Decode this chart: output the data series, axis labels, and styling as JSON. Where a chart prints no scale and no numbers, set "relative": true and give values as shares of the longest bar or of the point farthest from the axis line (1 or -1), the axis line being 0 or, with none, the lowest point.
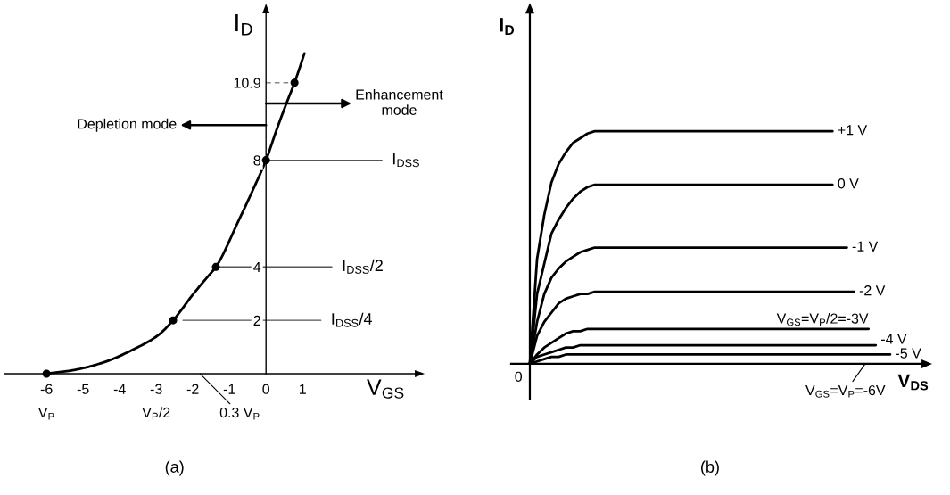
{
  "chart_data": [
    {
      "type": "line",
      "title": "(a)",
      "xlabel": "V$_{GS}$",
      "ylabel": "I$_{D}$",
      "xlim": [
        -7.15,
        4.07
      ],
      "ylim": [
        0,
        13.5
      ],
      "xticks": [
        -6,
        -5,
        -4,
        -3,
        -2,
        -1,
        0,
        1
      ],
      "yticks": [
        2,
        4,
        8,
        10.9
      ],
      "series": [
        {
          "type": "line",
          "color": "#000000",
          "x": [
            -6,
            -5.24,
            -4.41,
            -3.61,
            -2.95,
            -2.54,
            -1.98,
            -1.59,
            -1.37,
            -0.76,
            -0.37,
            0,
            0.29,
            0.59,
            0.78,
            1.05
          ],
          "values": [
            0,
            0.14,
            0.44,
            0.92,
            1.44,
            2,
            3.0,
            3.64,
            4,
            5.7,
            6.85,
            8,
            9.14,
            10.24,
            10.9,
            12.0
          ]
        },
        {
          "type": "scatter",
          "color": "#000000",
          "x": [
            -6,
            -2.54,
            -1.37,
            0,
            0.78
          ],
          "values": [
            0,
            2,
            4,
            8,
            10.9
          ]
        },
        {
          "type": "line",
          "name": "I$_{DSS}$",
          "color": "#555555",
          "x": [
            0,
            3.17
          ],
          "values": [
            8,
            8
          ]
        },
        {
          "type": "line",
          "name": "I$_{DSS}$/2",
          "color": "#555555",
          "x": [
            -1.37,
            1.8
          ],
          "values": [
            4,
            4
          ]
        },
        {
          "type": "line",
          "name": "I$_{DSS}$/4",
          "color": "#555555",
          "x": [
            -2.27,
            1.5
          ],
          "values": [
            2,
            2
          ]
        },
        {
          "type": "line",
          "color": "#888888",
          "line_style": "dashed",
          "x": [
            0,
            0.7
          ],
          "values": [
            10.9,
            10.9
          ]
        }
      ],
      "annotations": [
        "Depletion mode",
        "Enhancement\nmode",
        {
          "text": "V$_{P}$",
          "x": -6,
          "y": 0
        },
        "V$_{P}$/2",
        "0.3 V$_{P}$"
      ]
    },
    {
      "type": "line",
      "title": "(b)",
      "xlabel": "V$_{DS}$",
      "ylabel": "I$_{D}$",
      "relative": true,
      "categories": [
        null,
        null,
        null,
        null,
        null,
        null,
        null,
        null,
        null,
        null,
        null,
        null,
        null,
        null,
        null,
        null,
        null,
        null,
        null,
        null,
        null,
        null,
        null,
        null,
        null,
        null,
        null,
        null,
        null,
        null,
        null,
        null,
        null,
        null,
        null,
        null,
        null,
        null,
        null,
        null,
        null,
        null,
        null,
        null,
        null,
        null,
        null,
        null,
        null,
        null,
        null
      ],
      "series": [
        {
          "name": "+1 V",
          "color": "#000000",
          "values": [
            0,
            0.45,
            0.64,
            0.78,
            0.86,
            0.91,
            0.95,
            0.97,
            0.99,
            1,
            1,
            1,
            1,
            1,
            1,
            1,
            1,
            1,
            1,
            1,
            1,
            1,
            1,
            1,
            1,
            1,
            1,
            1,
            1,
            1,
            1,
            1,
            1,
            1,
            1,
            1,
            1,
            1,
            1,
            1,
            1,
            1,
            1,
            null,
            null,
            null,
            null,
            null,
            null,
            null,
            null
          ]
        },
        {
          "name": "0 V",
          "color": "#000000",
          "values": [
            0,
            0.3,
            0.43,
            0.56,
            0.62,
            0.67,
            0.71,
            0.74,
            0.76,
            0.77,
            0.77,
            0.77,
            0.77,
            0.77,
            0.77,
            0.77,
            0.77,
            0.77,
            0.77,
            0.77,
            0.77,
            0.77,
            0.77,
            0.77,
            0.77,
            0.77,
            0.77,
            0.77,
            0.77,
            0.77,
            0.77,
            0.77,
            0.77,
            0.77,
            0.77,
            0.77,
            0.77,
            0.77,
            0.77,
            0.77,
            0.77,
            0.77,
            0.77,
            null,
            null,
            null,
            null,
            null,
            null,
            null,
            null
          ]
        },
        {
          "name": "-1 V",
          "color": "#000000",
          "values": [
            0,
            0.18,
            0.3,
            0.37,
            0.41,
            0.44,
            0.46,
            0.48,
            0.49,
            0.5,
            0.5,
            0.5,
            0.5,
            0.5,
            0.5,
            0.5,
            0.5,
            0.5,
            0.5,
            0.5,
            0.5,
            0.5,
            0.5,
            0.5,
            0.5,
            0.5,
            0.5,
            0.5,
            0.5,
            0.5,
            0.5,
            0.5,
            0.5,
            0.5,
            0.5,
            0.5,
            0.5,
            0.5,
            0.5,
            0.5,
            0.5,
            0.5,
            0.5,
            0.5,
            0.5,
            null,
            null,
            null,
            null,
            null,
            null
          ]
        },
        {
          "name": "-2 V",
          "color": "#000000",
          "values": [
            0,
            0.12,
            0.18,
            0.22,
            0.26,
            0.28,
            0.29,
            0.3,
            0.3,
            0.31,
            0.31,
            0.31,
            0.31,
            0.31,
            0.31,
            0.31,
            0.31,
            0.31,
            0.31,
            0.31,
            0.31,
            0.31,
            0.31,
            0.31,
            0.31,
            0.31,
            0.31,
            0.31,
            0.31,
            0.31,
            0.31,
            0.31,
            0.31,
            0.31,
            0.31,
            0.31,
            0.31,
            0.31,
            0.31,
            0.31,
            0.31,
            0.31,
            0.31,
            0.31,
            0.31,
            0.31,
            null,
            null,
            null,
            null,
            null
          ]
        },
        {
          "name": "V$_{GS}$=V$_{P}$/2=-3V",
          "color": "#000000",
          "values": [
            0,
            0.04,
            0.07,
            0.09,
            0.11,
            0.13,
            0.14,
            0.14,
            0.15,
            0.15,
            0.15,
            0.15,
            0.15,
            0.15,
            0.15,
            0.15,
            0.15,
            0.15,
            0.15,
            0.15,
            0.15,
            0.15,
            0.15,
            0.15,
            0.15,
            0.15,
            0.15,
            0.15,
            0.15,
            0.15,
            0.15,
            0.15,
            0.15,
            0.15,
            0.15,
            0.15,
            0.15,
            0.15,
            0.15,
            0.15,
            0.15,
            0.15,
            0.15,
            0.15,
            0.15,
            0.15,
            0.15,
            0.15,
            null,
            null,
            null
          ]
        },
        {
          "name": "-4 V",
          "color": "#000000",
          "values": [
            0,
            0.03,
            0.04,
            0.05,
            0.06,
            0.07,
            0.07,
            0.08,
            0.08,
            0.08,
            0.08,
            0.08,
            0.08,
            0.08,
            0.08,
            0.08,
            0.08,
            0.08,
            0.08,
            0.08,
            0.08,
            0.08,
            0.08,
            0.08,
            0.08,
            0.08,
            0.08,
            0.08,
            0.08,
            0.08,
            0.08,
            0.08,
            0.08,
            0.08,
            0.08,
            0.08,
            0.08,
            0.08,
            0.08,
            0.08,
            0.08,
            0.08,
            0.08,
            0.08,
            0.08,
            0.08,
            0.08,
            0.08,
            0.08,
            null,
            null
          ]
        },
        {
          "name": "-5 V",
          "color": "#000000",
          "values": [
            0,
            0.01,
            0.02,
            0.03,
            0.03,
            0.04,
            0.04,
            0.04,
            0.04,
            0.04,
            0.04,
            0.04,
            0.04,
            0.04,
            0.04,
            0.04,
            0.04,
            0.04,
            0.04,
            0.04,
            0.04,
            0.04,
            0.04,
            0.04,
            0.04,
            0.04,
            0.04,
            0.04,
            0.04,
            0.04,
            0.04,
            0.04,
            0.04,
            0.04,
            0.04,
            0.04,
            0.04,
            0.04,
            0.04,
            0.04,
            0.04,
            0.04,
            0.04,
            0.04,
            0.04,
            0.04,
            0.04,
            0.04,
            0.04,
            0.04,
            0.04
          ]
        }
      ],
      "annotations": [
        "0",
        "V$_{GS}$=V$_{P}$=-6V"
      ]
    }
  ]
}
